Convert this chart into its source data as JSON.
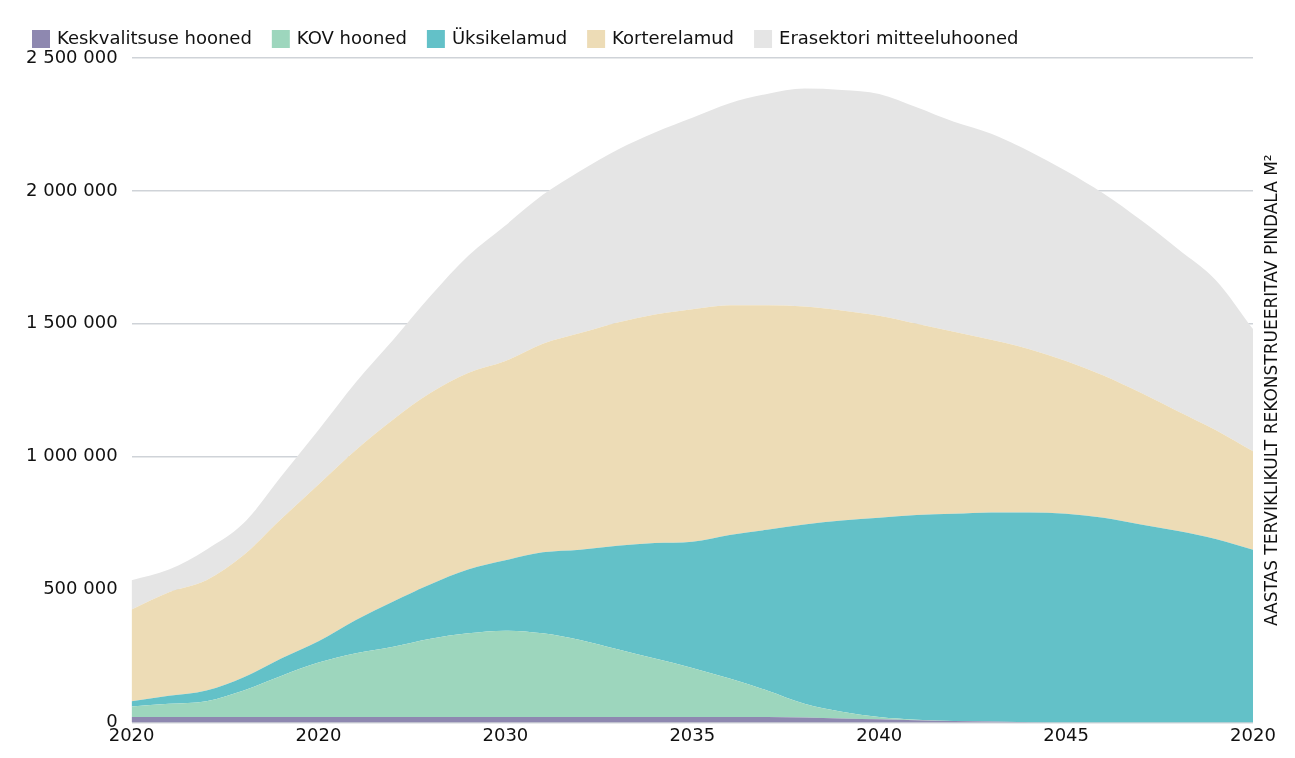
{
  "chart_data": {
    "type": "area",
    "stacked": true,
    "ylabel": "AASTAS TERVIKLIKULT REKONSTRUEERITAV PINDALA M²",
    "categories": [
      "2020",
      null,
      null,
      null,
      null,
      "2020",
      null,
      null,
      null,
      null,
      "2030",
      null,
      null,
      null,
      null,
      "2035",
      null,
      null,
      null,
      null,
      "2040",
      null,
      null,
      null,
      null,
      "2045",
      null,
      null,
      null,
      null,
      "2020"
    ],
    "ylim": [
      0,
      2500000
    ],
    "yticks": [
      0,
      {
        "value": 500000,
        "label": "500 000"
      },
      {
        "value": 1000000,
        "label": "1 000 000"
      },
      {
        "value": 1500000,
        "label": "1 500 000"
      },
      {
        "value": 2000000,
        "label": "2 000 000"
      },
      {
        "value": 2500000,
        "label": "2 500 000"
      }
    ],
    "grid": "y",
    "legend": "top",
    "series": [
      {
        "name": "Keskvalitsuse hooned",
        "color": "#8e88b0",
        "values": [
          20000,
          20000,
          20000,
          20000,
          20000,
          20000,
          20000,
          20000,
          20000,
          20000,
          20000,
          20000,
          20000,
          20000,
          20000,
          20000,
          20000,
          20000,
          18000,
          15000,
          12000,
          8000,
          5000,
          3000,
          1000,
          0,
          0,
          0,
          0,
          0,
          0
        ]
      },
      {
        "name": "KOV hooned",
        "color": "#9dd6bd",
        "values": [
          40000,
          50000,
          60000,
          100000,
          155000,
          205000,
          240000,
          265000,
          295000,
          315000,
          325000,
          315000,
          290000,
          255000,
          220000,
          185000,
          145000,
          100000,
          52000,
          25000,
          8000,
          2000,
          0,
          0,
          0,
          0,
          0,
          0,
          0,
          0,
          0
        ]
      },
      {
        "name": "Üksikelamud",
        "color": "#63c1c8",
        "values": [
          20000,
          30000,
          40000,
          50000,
          65000,
          80000,
          125000,
          170000,
          205000,
          240000,
          265000,
          305000,
          340000,
          390000,
          435000,
          475000,
          540000,
          605000,
          675000,
          720000,
          750000,
          770000,
          780000,
          787000,
          789000,
          785000,
          770000,
          745000,
          720000,
          690000,
          650000
        ]
      },
      {
        "name": "Korterelamud",
        "color": "#eddcb6",
        "values": [
          345000,
          390000,
          415000,
          460000,
          525000,
          590000,
          640000,
          685000,
          720000,
          740000,
          750000,
          785000,
          815000,
          840000,
          860000,
          875000,
          865000,
          845000,
          820000,
          790000,
          760000,
          720000,
          685000,
          650000,
          615000,
          575000,
          535000,
          495000,
          450000,
          410000,
          370000
        ]
      },
      {
        "name": "Erasektori mitteeluhooned",
        "color": "#e5e5e5",
        "values": [
          110000,
          85000,
          115000,
          120000,
          160000,
          205000,
          255000,
          300000,
          365000,
          440000,
          510000,
          560000,
          610000,
          650000,
          685000,
          720000,
          760000,
          795000,
          820000,
          830000,
          835000,
          815000,
          790000,
          775000,
          745000,
          715000,
          685000,
          650000,
          610000,
          565000,
          460000
        ]
      }
    ]
  }
}
